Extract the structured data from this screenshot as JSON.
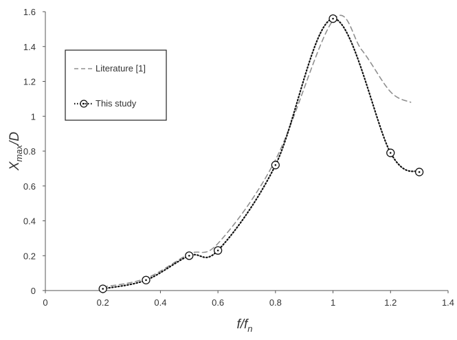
{
  "chart_data": {
    "type": "line",
    "xlabel": {
      "main": "f/f",
      "sub": "n"
    },
    "ylabel": {
      "main": "X",
      "sub": "max",
      "tail": "/D"
    },
    "xlim": [
      0,
      1.4
    ],
    "ylim": [
      0,
      1.6
    ],
    "x_ticks": [
      "0",
      "0.2",
      "0.4",
      "0.6",
      "0.8",
      "1",
      "1.2",
      "1.4"
    ],
    "y_ticks": [
      "0",
      "0.2",
      "0.4",
      "0.6",
      "0.8",
      "1",
      "1.2",
      "1.4",
      "1.6"
    ],
    "grid": false,
    "legend_position": "upper-left",
    "series": [
      {
        "name": "Literature [1]",
        "style": "dashed",
        "color": "#8f8f8f",
        "markers": false,
        "x": [
          0.2,
          0.35,
          0.5,
          0.6,
          0.8,
          1.0,
          1.1,
          1.2,
          1.27
        ],
        "y": [
          0.02,
          0.07,
          0.21,
          0.27,
          0.75,
          1.55,
          1.38,
          1.14,
          1.08
        ]
      },
      {
        "name": "This study",
        "style": "dotted",
        "color": "#111111",
        "markers": true,
        "x": [
          0.2,
          0.35,
          0.5,
          0.6,
          0.8,
          1.0,
          1.2,
          1.3
        ],
        "y": [
          0.01,
          0.06,
          0.2,
          0.23,
          0.72,
          1.56,
          0.79,
          0.68
        ]
      }
    ]
  }
}
